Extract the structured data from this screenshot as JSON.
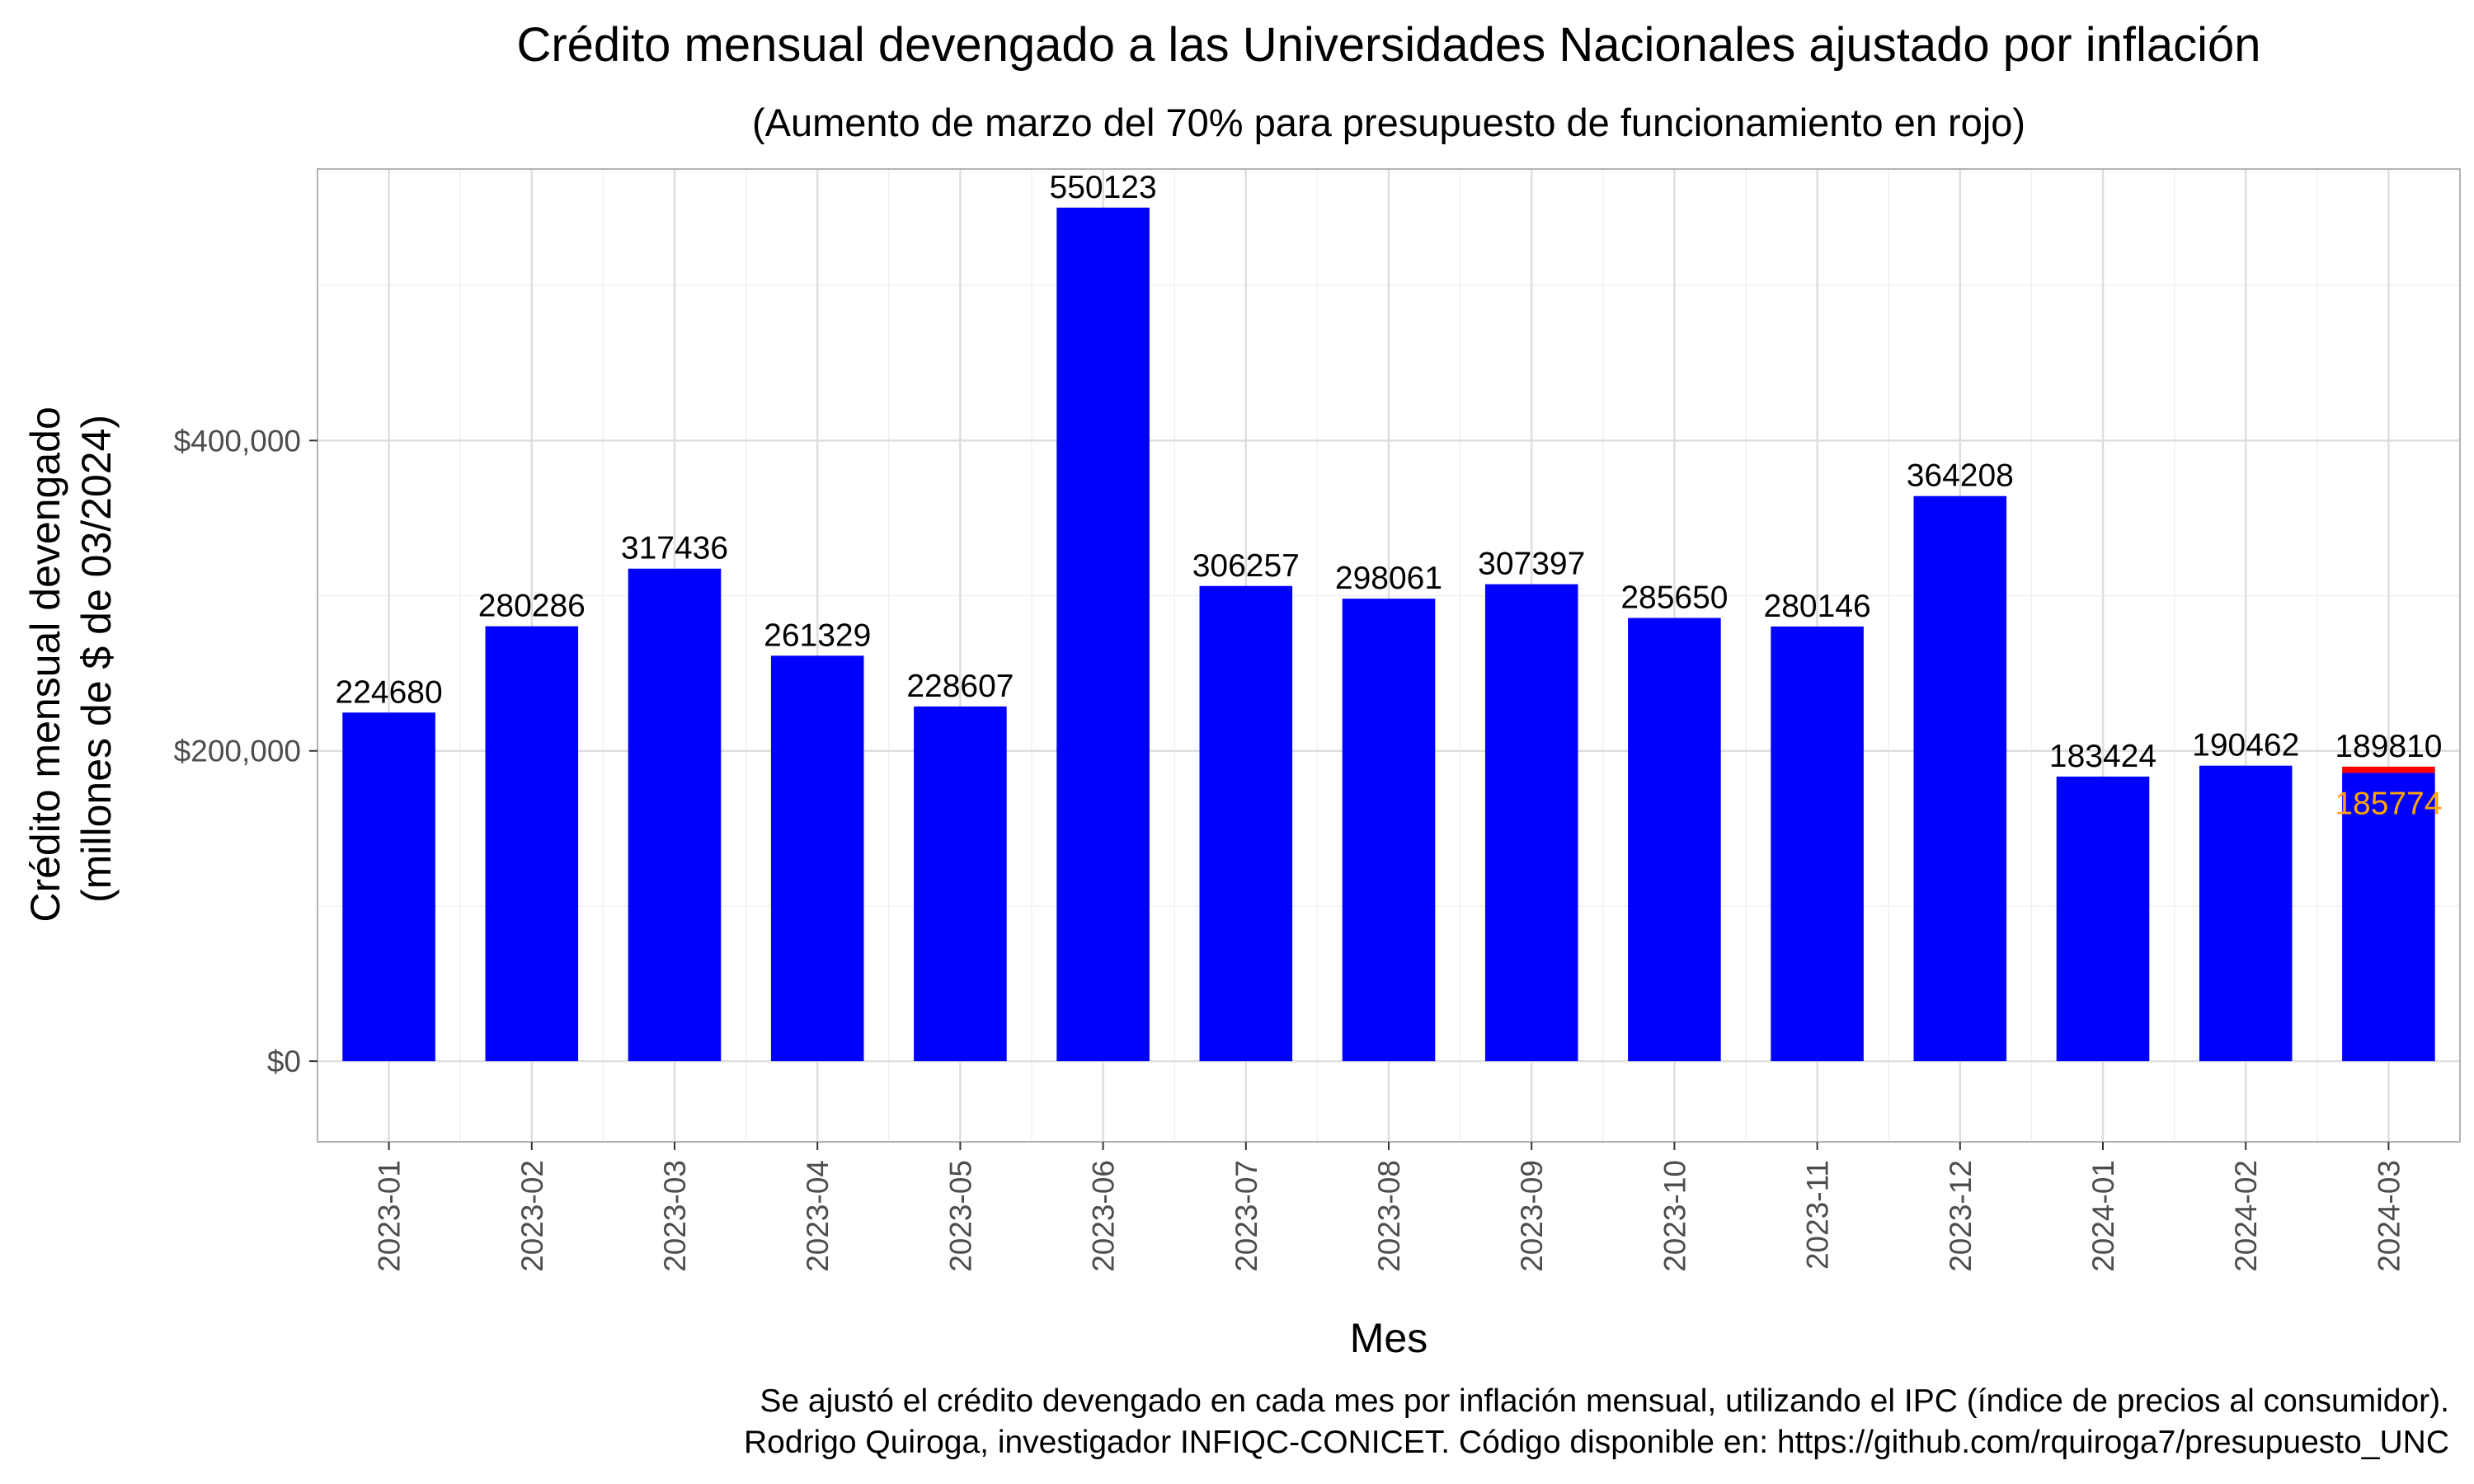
{
  "chart_data": {
    "type": "bar",
    "title": "Crédito mensual devengado a las Universidades Nacionales ajustado por inflación",
    "subtitle": "(Aumento de marzo del 70% para presupuesto de funcionamiento en rojo)",
    "xlabel": "Mes",
    "ylabel_line1": "Crédito mensual devengado",
    "ylabel_line2": "(millones de $ de 03/2024)",
    "ylim": [
      -52000,
      575000
    ],
    "y_ticks": [
      0,
      200000,
      400000
    ],
    "y_tick_labels": [
      "$0",
      "$200,000",
      "$400,000"
    ],
    "y_minor_ticks": [
      100000,
      300000,
      500000
    ],
    "grid": true,
    "categories": [
      "2023-01",
      "2023-02",
      "2023-03",
      "2023-04",
      "2023-05",
      "2023-06",
      "2023-07",
      "2023-08",
      "2023-09",
      "2023-10",
      "2023-11",
      "2023-12",
      "2024-01",
      "2024-02",
      "2024-03"
    ],
    "series": [
      {
        "color": "#0000ff",
        "values": [
          224680,
          280286,
          317436,
          261329,
          228607,
          550123,
          306257,
          298061,
          307397,
          285650,
          280146,
          364208,
          183424,
          190462,
          185774
        ]
      },
      {
        "color": "#ff0000",
        "values": [
          null,
          null,
          null,
          null,
          null,
          null,
          null,
          null,
          null,
          null,
          null,
          null,
          null,
          null,
          189810
        ]
      }
    ],
    "data_labels": [
      "224680",
      "280286",
      "317436",
      "261329",
      "228607",
      "550123",
      "306257",
      "298061",
      "307397",
      "285650",
      "280146",
      "364208",
      "183424",
      "190462",
      "189810"
    ],
    "extra_label": {
      "category": "2024-03",
      "value": 185774,
      "text": "185774",
      "color": "#ffa500"
    },
    "caption_line1": "Se ajustó el crédito devengado en cada mes por inflación mensual, utilizando el IPC (índice de precios al consumidor).",
    "caption_line2": "Rodrigo Quiroga, investigador INFIQC-CONICET. Código disponible en: https://github.com/rquiroga7/presupuesto_UNC"
  }
}
